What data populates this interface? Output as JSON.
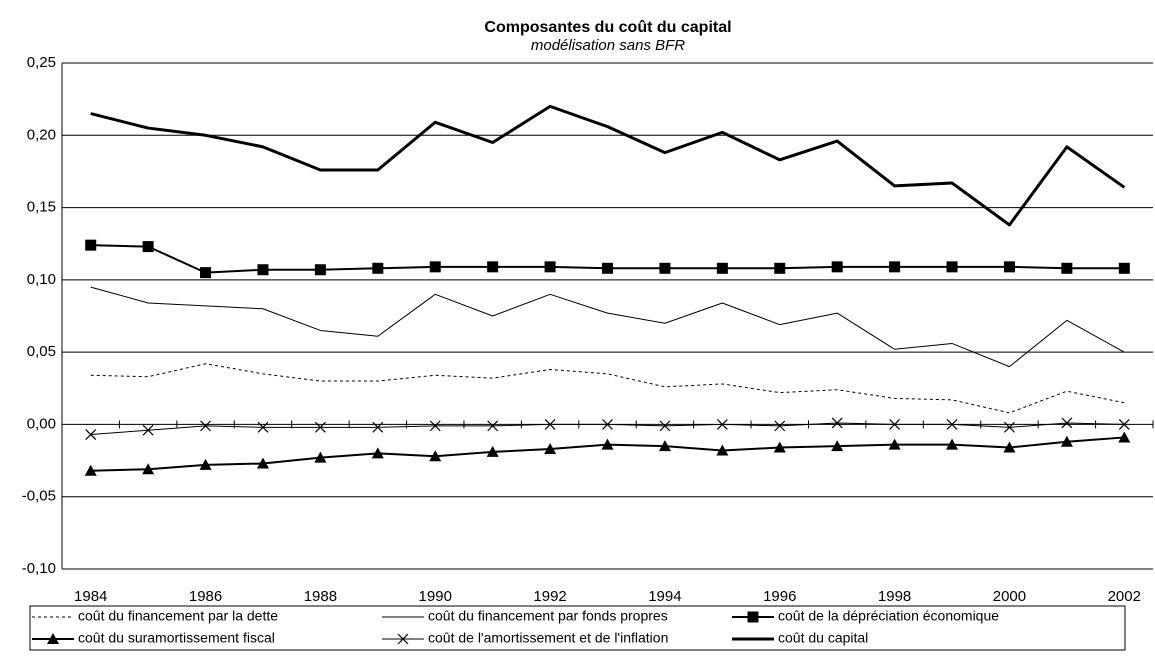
{
  "chart_data": {
    "type": "line",
    "title": "Composantes du coût du capital",
    "subtitle": "modélisation sans BFR",
    "categories": [
      "1984",
      null,
      "1986",
      null,
      "1988",
      null,
      "1990",
      null,
      "1992",
      null,
      "1994",
      null,
      "1996",
      null,
      "1998",
      null,
      "2000",
      null,
      "2002"
    ],
    "ylim": [
      -0.1,
      0.25
    ],
    "yticks": [
      {
        "value": -0.1,
        "label": "-0,10"
      },
      {
        "value": -0.05,
        "label": "-0,05"
      },
      {
        "value": 0,
        "label": "0,00"
      },
      {
        "value": 0.05,
        "label": "0,05"
      },
      {
        "value": 0.1,
        "label": "0,10"
      },
      {
        "value": 0.15,
        "label": "0,15"
      },
      {
        "value": 0.2,
        "label": "0,20"
      },
      {
        "value": 0.25,
        "label": "0,25"
      }
    ],
    "grid": true,
    "legend": "bottom",
    "series": [
      {
        "name": "coût du financement par la dette",
        "color": "#000000",
        "dash": "dotted",
        "width": 1,
        "marker": "none",
        "values": [
          0.034,
          0.033,
          0.042,
          0.035,
          0.03,
          0.03,
          0.034,
          0.032,
          0.038,
          0.035,
          0.026,
          0.028,
          0.022,
          0.024,
          0.018,
          0.017,
          0.008,
          0.023,
          0.015
        ]
      },
      {
        "name": "coût du financement par fonds propres",
        "color": "#000000",
        "dash": "solid",
        "width": 1,
        "marker": "none",
        "values": [
          0.095,
          0.084,
          0.082,
          0.08,
          0.065,
          0.061,
          0.09,
          0.075,
          0.09,
          0.077,
          0.07,
          0.084,
          0.069,
          0.077,
          0.052,
          0.056,
          0.04,
          0.072,
          0.05
        ]
      },
      {
        "name": "coût de la dépréciation économique",
        "color": "#000000",
        "dash": "solid",
        "width": 2,
        "marker": "square",
        "values": [
          0.124,
          0.123,
          0.105,
          0.107,
          0.107,
          0.108,
          0.109,
          0.109,
          0.109,
          0.108,
          0.108,
          0.108,
          0.108,
          0.109,
          0.109,
          0.109,
          0.109,
          0.108,
          0.108
        ]
      },
      {
        "name": "coût du suramortissement fiscal",
        "color": "#000000",
        "dash": "solid",
        "width": 2,
        "marker": "triangle",
        "values": [
          -0.032,
          -0.031,
          -0.028,
          -0.027,
          -0.023,
          -0.02,
          -0.022,
          -0.019,
          -0.017,
          -0.014,
          -0.015,
          -0.018,
          -0.016,
          -0.015,
          -0.014,
          -0.014,
          -0.016,
          -0.012,
          -0.009
        ]
      },
      {
        "name": "coût de l'amortissement et de l'inflation",
        "color": "#000000",
        "dash": "solid",
        "width": 1,
        "marker": "cross",
        "values": [
          -0.007,
          -0.004,
          -0.001,
          -0.002,
          -0.002,
          -0.002,
          -0.001,
          -0.001,
          0.0,
          0.0,
          -0.001,
          0.0,
          -0.001,
          0.001,
          0.0,
          0.0,
          -0.002,
          0.001,
          0.0
        ]
      },
      {
        "name": "coût du capital",
        "color": "#000000",
        "dash": "solid",
        "width": 3,
        "marker": "none",
        "values": [
          0.215,
          0.205,
          0.2,
          0.192,
          0.176,
          0.176,
          0.209,
          0.195,
          0.22,
          0.206,
          0.188,
          0.202,
          0.183,
          0.196,
          0.165,
          0.167,
          0.138,
          0.192,
          0.164
        ]
      }
    ]
  }
}
